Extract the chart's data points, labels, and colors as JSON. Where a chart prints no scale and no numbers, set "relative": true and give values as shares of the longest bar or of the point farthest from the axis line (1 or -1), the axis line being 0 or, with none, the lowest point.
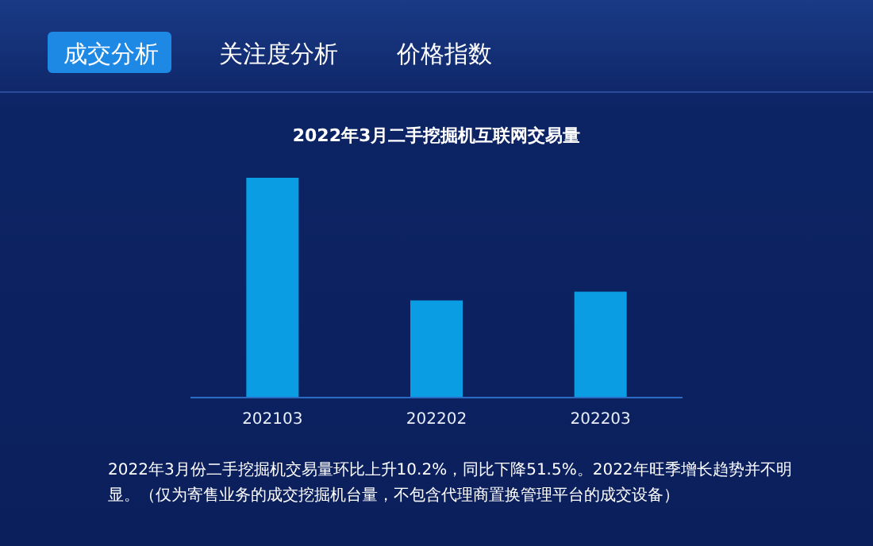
{
  "chart_data": {
    "type": "bar",
    "title": "2022年3月二手挖掘机互联网交易量",
    "categories": [
      "202103",
      "202202",
      "202203"
    ],
    "values": [
      1,
      0.44,
      0.48
    ],
    "color": "#0a9de3",
    "relative": true,
    "annotations": [
      "成交分析",
      "关注度分析",
      "价格指数",
      "2022年3月份二手挖掘机交易量环比上升10.2%，同比下降51.5%。2022年旺季增长趋势并不明显。（仅为寄售业务的成交挖掘机台量，不包含代理商置换管理平台的成交设备）"
    ]
  }
}
